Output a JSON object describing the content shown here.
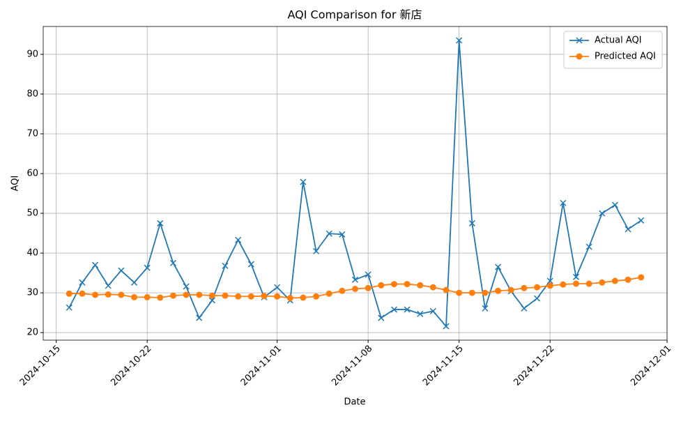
{
  "chart_data": {
    "type": "line",
    "title": "AQI Comparison for 新店",
    "xlabel": "Date",
    "ylabel": "AQI",
    "x": [
      "2024-10-16",
      "2024-10-17",
      "2024-10-18",
      "2024-10-19",
      "2024-10-20",
      "2024-10-21",
      "2024-10-22",
      "2024-10-23",
      "2024-10-24",
      "2024-10-25",
      "2024-10-26",
      "2024-10-27",
      "2024-10-28",
      "2024-10-29",
      "2024-10-30",
      "2024-10-31",
      "2024-11-01",
      "2024-11-02",
      "2024-11-03",
      "2024-11-04",
      "2024-11-05",
      "2024-11-06",
      "2024-11-07",
      "2024-11-08",
      "2024-11-09",
      "2024-11-10",
      "2024-11-11",
      "2024-11-12",
      "2024-11-13",
      "2024-11-14",
      "2024-11-15",
      "2024-11-16",
      "2024-11-17",
      "2024-11-18",
      "2024-11-19",
      "2024-11-20",
      "2024-11-21",
      "2024-11-22",
      "2024-11-23",
      "2024-11-24",
      "2024-11-25",
      "2024-11-26",
      "2024-11-27",
      "2024-11-28",
      "2024-11-29"
    ],
    "series": [
      {
        "name": "Actual AQI",
        "color": "#1f77b4",
        "marker": "x",
        "values": [
          26.3,
          32.6,
          37.0,
          31.8,
          35.6,
          32.6,
          36.3,
          47.5,
          37.5,
          31.6,
          23.7,
          28.1,
          36.8,
          43.3,
          37.2,
          28.9,
          31.4,
          28.1,
          57.9,
          40.5,
          44.9,
          44.7,
          33.3,
          34.6,
          23.7,
          25.8,
          25.8,
          24.7,
          25.4,
          21.6,
          93.5,
          47.5,
          26.1,
          36.5,
          30.4,
          26.1,
          28.6,
          33.0,
          52.6,
          34.0,
          41.6,
          50.0,
          52.1,
          46.0,
          48.2
        ]
      },
      {
        "name": "Predicted AQI",
        "color": "#ff7f0e",
        "marker": "o",
        "values": [
          29.8,
          29.8,
          29.5,
          29.6,
          29.5,
          28.9,
          28.9,
          28.8,
          29.3,
          29.5,
          29.5,
          29.3,
          29.3,
          29.1,
          29.1,
          29.2,
          29.1,
          28.7,
          28.8,
          29.1,
          29.8,
          30.5,
          31.0,
          31.2,
          31.9,
          32.2,
          32.2,
          31.9,
          31.4,
          30.7,
          30.0,
          30.0,
          30.0,
          30.5,
          30.7,
          31.2,
          31.4,
          31.8,
          32.1,
          32.3,
          32.3,
          32.6,
          33.0,
          33.3,
          33.9
        ]
      }
    ],
    "xlim": [
      "2024-10-14",
      "2024-12-01"
    ],
    "xticks": [
      "2024-10-15",
      "2024-10-22",
      "2024-11-01",
      "2024-11-08",
      "2024-11-15",
      "2024-11-22",
      "2024-12-01"
    ],
    "ylim": [
      18.1,
      97.0
    ],
    "yticks": [
      20,
      30,
      40,
      50,
      60,
      70,
      80,
      90
    ],
    "grid": true,
    "legend": "upper right"
  }
}
